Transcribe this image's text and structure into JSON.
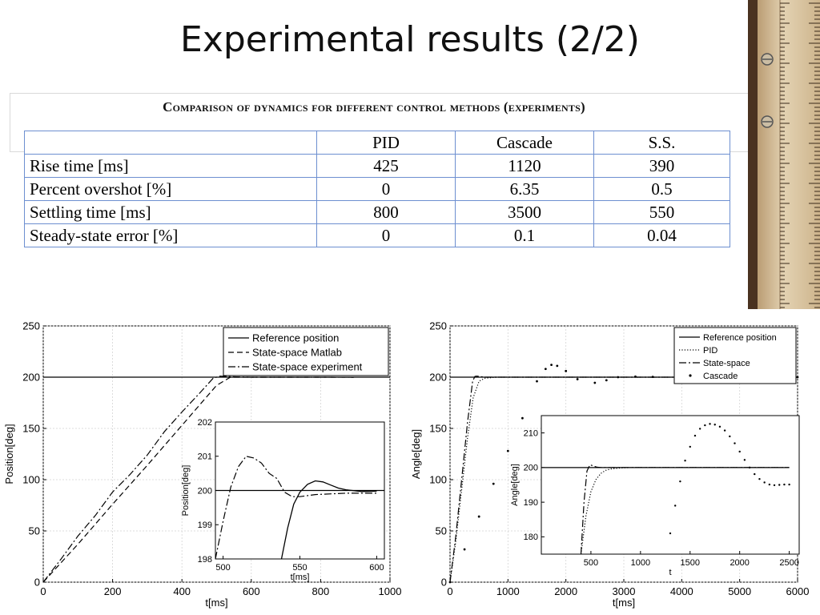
{
  "slide": {
    "title": "Experimental results (2/2)"
  },
  "table": {
    "caption": "Comparison of dynamics for different control methods (experiments)",
    "header": [
      "",
      "PID",
      "Cascade",
      "S.S."
    ],
    "rows": [
      [
        "Rise time  [ms]",
        "425",
        "1120",
        "390"
      ],
      [
        "Percent overshot  [%]",
        "0",
        "6.35",
        "0.5"
      ],
      [
        "Settling time  [ms]",
        "800",
        "3500",
        "550"
      ],
      [
        "Steady-state error [%]",
        "0",
        "0.1",
        "0.04"
      ]
    ]
  },
  "chart_data": [
    {
      "type": "line",
      "xlabel": "t[ms]",
      "ylabel": "Position[deg]",
      "xlim": [
        0,
        1000
      ],
      "ylim": [
        0,
        250
      ],
      "xticks": [
        0,
        200,
        400,
        600,
        800,
        1000
      ],
      "yticks": [
        0,
        50,
        100,
        150,
        200,
        250
      ],
      "grid": true,
      "legend_position": "top-right",
      "series": [
        {
          "name": "Reference position",
          "style": "solid",
          "x": [
            0,
            1000
          ],
          "y": [
            200,
            200
          ]
        },
        {
          "name": "State-space Matlab",
          "style": "dashed",
          "x": [
            0,
            100,
            200,
            300,
            400,
            500,
            540,
            600,
            700,
            800,
            900
          ],
          "y": [
            0,
            37,
            76,
            114,
            153,
            192,
            200,
            200,
            200,
            200,
            199.9
          ]
        },
        {
          "name": "State-space experiment",
          "style": "dashdot",
          "x": [
            0,
            50,
            100,
            150,
            200,
            250,
            300,
            350,
            400,
            450,
            490,
            510,
            540,
            600,
            700,
            800,
            900
          ],
          "y": [
            0,
            22,
            45,
            65,
            88,
            105,
            124,
            147,
            166,
            184,
            199,
            201,
            200.5,
            200,
            200,
            200,
            199.9
          ]
        }
      ],
      "inset": {
        "xlabel": "t[ms]",
        "ylabel": "Position[deg]",
        "xlim": [
          495,
          605
        ],
        "ylim": [
          198,
          202
        ],
        "xticks": [
          500,
          550,
          600
        ],
        "yticks": [
          198,
          199,
          200,
          201,
          202
        ],
        "series": [
          {
            "name": "Reference position",
            "style": "solid",
            "x": [
              495,
              605
            ],
            "y": [
              200,
              200
            ]
          },
          {
            "name": "State-space Matlab",
            "style": "solid",
            "x": [
              538,
              542,
              546,
              550,
              555,
              560,
              565,
              570,
              575,
              580,
              590,
              600
            ],
            "y": [
              198,
              198.9,
              199.6,
              199.95,
              200.18,
              200.28,
              200.25,
              200.16,
              200.07,
              200.02,
              199.97,
              199.98
            ]
          },
          {
            "name": "State-space experiment",
            "style": "dashdot",
            "x": [
              495,
              500,
              505,
              510,
              515,
              520,
              525,
              530,
              535,
              540,
              545,
              550,
              560,
              580,
              600
            ],
            "y": [
              198,
              199.1,
              200.1,
              200.7,
              201,
              200.95,
              200.8,
              200.5,
              200.35,
              199.95,
              199.82,
              199.82,
              199.88,
              199.92,
              199.92
            ]
          }
        ]
      }
    },
    {
      "type": "line",
      "xlabel": "t[ms]",
      "ylabel": "Angle[deg]",
      "xlim": [
        0,
        6000
      ],
      "ylim": [
        0,
        250
      ],
      "xticks": [
        0,
        1000,
        2000,
        3000,
        4000,
        5000,
        6000
      ],
      "yticks": [
        0,
        50,
        100,
        150,
        200,
        250
      ],
      "grid": true,
      "legend_position": "top-right",
      "series": [
        {
          "name": "Reference position",
          "style": "solid",
          "x": [
            0,
            6000
          ],
          "y": [
            200,
            200
          ]
        },
        {
          "name": "PID",
          "style": "dotted",
          "x": [
            0,
            100,
            200,
            300,
            400,
            500,
            600,
            800,
            1000,
            2000,
            6000
          ],
          "y": [
            0,
            40,
            90,
            140,
            180,
            196,
            199,
            200,
            200,
            200,
            200
          ]
        },
        {
          "name": "State-space",
          "style": "dashdot",
          "x": [
            0,
            100,
            200,
            300,
            390,
            430,
            460,
            600,
            1000,
            6000
          ],
          "y": [
            0,
            45,
            100,
            155,
            196,
            200.8,
            201,
            200,
            200,
            200
          ]
        },
        {
          "name": "Cascade",
          "style": "markers",
          "x": [
            0,
            250,
            500,
            750,
            1000,
            1250,
            1500,
            1650,
            1750,
            1850,
            2000,
            2200,
            2500,
            2700,
            2900,
            3200,
            3500,
            4000,
            4500,
            5000,
            5500,
            6000
          ],
          "y": [
            0,
            32,
            64,
            96,
            128,
            160,
            196,
            208,
            212,
            211,
            206,
            198,
            194.5,
            197,
            200,
            200.6,
            200.3,
            200,
            200,
            200,
            200,
            200
          ]
        }
      ],
      "inset": {
        "xlabel": "t",
        "ylabel": "Angle[deg]",
        "xlim": [
          0,
          2600
        ],
        "ylim": [
          175,
          215
        ],
        "xticks": [
          500,
          1000,
          1500,
          2000,
          2500
        ],
        "yticks": [
          180,
          190,
          200,
          210
        ],
        "series": [
          {
            "name": "Reference position",
            "style": "solid",
            "x": [
              0,
              2500
            ],
            "y": [
              200,
              200
            ]
          },
          {
            "name": "PID",
            "style": "dotted",
            "x": [
              400,
              450,
              500,
              550,
              600,
              650,
              700,
              800,
              900,
              1000,
              2500
            ],
            "y": [
              175,
              186,
              193,
              196.5,
              198.3,
              199.2,
              199.6,
              199.9,
              200,
              200,
              200
            ]
          },
          {
            "name": "State-space",
            "style": "dashdot",
            "x": [
              400,
              430,
              460,
              490,
              520,
              560,
              600,
              2500
            ],
            "y": [
              175,
              190,
              199,
              200.8,
              200.5,
              200.1,
              200,
              200
            ]
          },
          {
            "name": "Cascade",
            "style": "markers",
            "x": [
              1300,
              1350,
              1400,
              1450,
              1500,
              1550,
              1600,
              1650,
              1700,
              1750,
              1800,
              1850,
              1900,
              1950,
              2000,
              2050,
              2100,
              2150,
              2200,
              2250,
              2300,
              2350,
              2400,
              2450,
              2500
            ],
            "y": [
              181,
              189,
              196,
              202,
              206,
              209.2,
              211.2,
              212.2,
              212.6,
              212.4,
              211.8,
              210.7,
              209,
              207,
              204.6,
              202.2,
              200,
              198.1,
              196.7,
              195.7,
              195.1,
              194.9,
              195,
              195.1,
              195.1
            ]
          }
        ]
      }
    }
  ],
  "style": {
    "ref_color": "#000000",
    "table_border": "#6d8fd0",
    "grid_color": "#d4d4d4"
  }
}
